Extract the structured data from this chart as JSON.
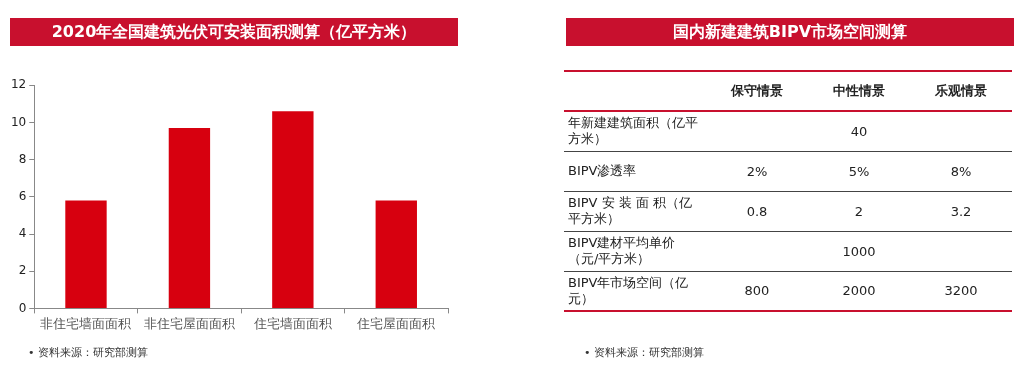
{
  "chart_data": [
    {
      "type": "bar",
      "title": "2020年全国建筑光伏可安装面积测算（亿平方米）",
      "categories": [
        "非住宅墙面面积",
        "非住宅屋面面积",
        "住宅墙面面积",
        "住宅屋面面积"
      ],
      "values": [
        5.8,
        9.7,
        10.6,
        5.8
      ],
      "color": "#d7000f",
      "ylim": [
        0,
        12
      ],
      "yticks": [
        0,
        2,
        4,
        6,
        8,
        10,
        12
      ],
      "legend": false,
      "annotations": [
        "• 资料来源：研究部测算"
      ]
    },
    {
      "type": "other",
      "title": "国内新建建筑BIPV市场空间测算",
      "categories": [
        null,
        "保守情景",
        "中性情景",
        "乐观情景"
      ],
      "y_categories": [
        "年新建建筑面积（亿平方米）",
        "BIPV渗透率",
        "BIPV 安 装 面 积（亿平方米）",
        "BIPV建材平均单价（元/平方米）",
        "BIPV年市场空间（亿元）"
      ],
      "cell_labels": [
        [
          null,
          "40",
          null
        ],
        [
          "2%",
          "5%",
          "8%"
        ],
        [
          "0.8",
          "2",
          "3.2"
        ],
        [
          null,
          "1000",
          null
        ],
        [
          "800",
          "2000",
          "3200"
        ]
      ],
      "annotations": [
        "• 资料来源：研究部测算"
      ]
    }
  ]
}
